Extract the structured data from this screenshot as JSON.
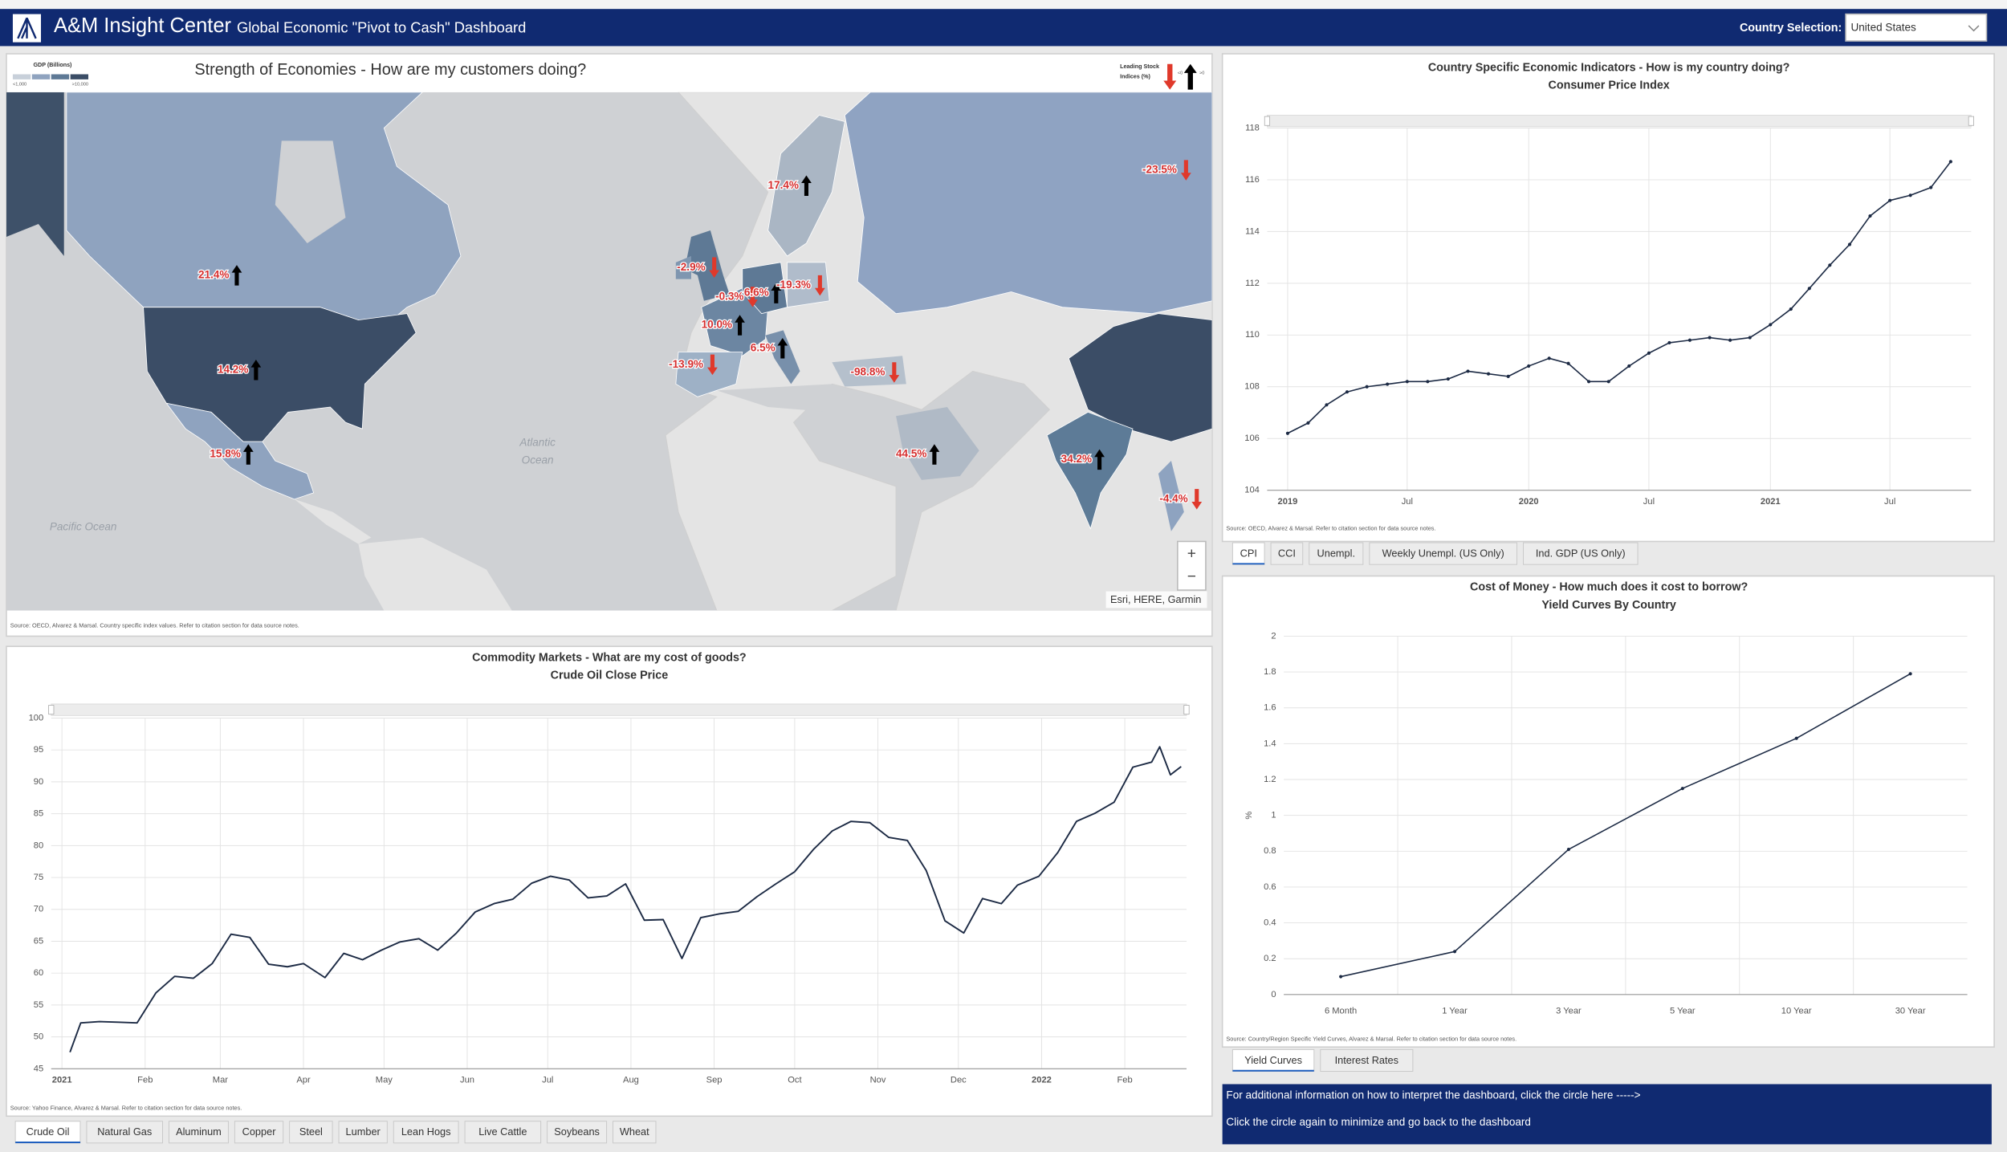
{
  "header": {
    "title": "A&M Insight Center",
    "subtitle": "Global Economic \"Pivot to Cash\" Dashboard",
    "country_label": "Country Selection:",
    "country": "United States"
  },
  "map": {
    "title": "Strength of Economies - How are my customers doing?",
    "gdp_legend": {
      "title": "GDP (Billions)",
      "low": "<1,000",
      "high": ">10,000"
    },
    "stock_legend": {
      "title": [
        "Leading Stock",
        "Indices (%)"
      ],
      "down": "<0",
      "up": ">0"
    },
    "atlantic": [
      "Atlantic",
      "Ocean"
    ],
    "pacific": "Pacific Ocean",
    "attribution": "Esri, HERE, Garmin",
    "zoom": [
      "+",
      "−"
    ],
    "markers": [
      "17.4%",
      "-23.5%",
      "21.4%",
      "14.2%",
      "15.8%",
      "-2.9%",
      "-0.3%",
      "6.6%",
      "-19.3%",
      "10.0%",
      "6.5%",
      "-13.9%",
      "-98.8%",
      "44.5%",
      "34.2%",
      "-4.4%"
    ],
    "source": "Source: OECD, Alvarez & Marsal. Country specific index values. Refer to citation section for data source notes."
  },
  "chart_data": [
    {
      "type": "line",
      "title": "Country Specific Economic Indicators - How is my country doing?",
      "subtitle": "Consumer Price Index",
      "x": [
        "2019-01",
        "2019-02",
        "2019-03",
        "2019-04",
        "2019-05",
        "2019-06",
        "2019-07",
        "2019-08",
        "2019-09",
        "2019-10",
        "2019-11",
        "2019-12",
        "2020-01",
        "2020-02",
        "2020-03",
        "2020-04",
        "2020-05",
        "2020-06",
        "2020-07",
        "2020-08",
        "2020-09",
        "2020-10",
        "2020-11",
        "2020-12",
        "2021-01",
        "2021-02",
        "2021-03",
        "2021-04",
        "2021-05",
        "2021-06",
        "2021-07",
        "2021-08",
        "2021-09",
        "2021-10"
      ],
      "values": [
        106.2,
        106.6,
        107.3,
        107.8,
        108.0,
        108.1,
        108.2,
        108.2,
        108.3,
        108.6,
        108.5,
        108.4,
        108.8,
        109.1,
        108.9,
        108.2,
        108.2,
        108.8,
        109.3,
        109.7,
        109.8,
        109.9,
        109.8,
        109.9,
        110.4,
        111.0,
        111.8,
        112.7,
        113.5,
        114.6,
        115.2,
        115.4,
        115.7,
        116.7
      ],
      "color": "#1c2a44",
      "markers": true,
      "xlim": [
        "2018-12",
        "2021-11"
      ],
      "xticks": [
        {
          "value": "2019-01",
          "label": "2019"
        },
        {
          "value": "2019-07",
          "label": "Jul"
        },
        {
          "value": "2020-01",
          "label": "2020"
        },
        {
          "value": "2020-07",
          "label": "Jul"
        },
        {
          "value": "2021-01",
          "label": "2021"
        },
        {
          "value": "2021-07",
          "label": "Jul"
        }
      ],
      "ylim": [
        104,
        118
      ],
      "yticks": [
        104,
        106,
        108,
        110,
        112,
        114,
        116,
        118
      ],
      "grid": true,
      "source": "Source: OECD, Alvarez & Marsal. Refer to citation section for data source notes.",
      "tabs": [
        "CPI",
        "CCI",
        "Unempl.",
        "Weekly Unempl. (US Only)",
        "Ind. GDP (US Only)"
      ],
      "selected_tab": 0
    },
    {
      "type": "line",
      "title": "Commodity Markets - What are my cost of goods?",
      "subtitle": "Crude Oil Close Price",
      "x": [
        "2021-01-04",
        "2021-01-08",
        "2021-01-15",
        "2021-01-22",
        "2021-01-29",
        "2021-02-05",
        "2021-02-12",
        "2021-02-19",
        "2021-02-26",
        "2021-03-05",
        "2021-03-12",
        "2021-03-19",
        "2021-03-26",
        "2021-04-01",
        "2021-04-09",
        "2021-04-16",
        "2021-04-23",
        "2021-04-30",
        "2021-05-07",
        "2021-05-14",
        "2021-05-21",
        "2021-05-28",
        "2021-06-04",
        "2021-06-11",
        "2021-06-18",
        "2021-06-25",
        "2021-07-02",
        "2021-07-09",
        "2021-07-16",
        "2021-07-23",
        "2021-07-30",
        "2021-08-06",
        "2021-08-13",
        "2021-08-20",
        "2021-08-27",
        "2021-09-03",
        "2021-09-10",
        "2021-09-17",
        "2021-09-24",
        "2021-10-01",
        "2021-10-08",
        "2021-10-15",
        "2021-10-22",
        "2021-10-29",
        "2021-11-05",
        "2021-11-12",
        "2021-11-19",
        "2021-11-26",
        "2021-12-03",
        "2021-12-10",
        "2021-12-17",
        "2021-12-23",
        "2021-12-31",
        "2022-01-07",
        "2022-01-14",
        "2022-01-21",
        "2022-01-28",
        "2022-02-04",
        "2022-02-11",
        "2022-02-14",
        "2022-02-18",
        "2022-02-22"
      ],
      "values": [
        47.6,
        52.2,
        52.4,
        52.3,
        52.2,
        56.9,
        59.5,
        59.2,
        61.5,
        66.1,
        65.6,
        61.4,
        61.0,
        61.5,
        59.3,
        63.1,
        62.1,
        63.6,
        64.9,
        65.4,
        63.6,
        66.3,
        69.6,
        70.9,
        71.6,
        74.1,
        75.2,
        74.6,
        71.8,
        72.1,
        74.0,
        68.3,
        68.4,
        62.3,
        68.7,
        69.3,
        69.7,
        72.0,
        74.0,
        75.9,
        79.4,
        82.3,
        83.8,
        83.6,
        81.3,
        80.8,
        76.1,
        68.2,
        66.3,
        71.7,
        70.9,
        73.8,
        75.2,
        78.9,
        83.8,
        85.1,
        86.8,
        92.3,
        93.1,
        95.5,
        91.1,
        92.4
      ],
      "color": "#1c2a44",
      "markers": false,
      "xlim": [
        "2020-12-28",
        "2022-02-24"
      ],
      "xticks": [
        {
          "value": "2021-01-01",
          "label": "2021"
        },
        {
          "value": "2021-02-01",
          "label": "Feb"
        },
        {
          "value": "2021-03-01",
          "label": "Mar"
        },
        {
          "value": "2021-04-01",
          "label": "Apr"
        },
        {
          "value": "2021-05-01",
          "label": "May"
        },
        {
          "value": "2021-06-01",
          "label": "Jun"
        },
        {
          "value": "2021-07-01",
          "label": "Jul"
        },
        {
          "value": "2021-08-01",
          "label": "Aug"
        },
        {
          "value": "2021-09-01",
          "label": "Sep"
        },
        {
          "value": "2021-10-01",
          "label": "Oct"
        },
        {
          "value": "2021-11-01",
          "label": "Nov"
        },
        {
          "value": "2021-12-01",
          "label": "Dec"
        },
        {
          "value": "2022-01-01",
          "label": "2022"
        },
        {
          "value": "2022-02-01",
          "label": "Feb"
        }
      ],
      "ylim": [
        45,
        100
      ],
      "yticks": [
        45,
        50,
        55,
        60,
        65,
        70,
        75,
        80,
        85,
        90,
        95,
        100
      ],
      "grid": true,
      "source": "Source: Yahoo Finance, Alvarez & Marsal. Refer to citation section for data source notes.",
      "tabs": [
        "Crude Oil",
        "Natural Gas",
        "Aluminum",
        "Copper",
        "Steel",
        "Lumber",
        "Lean Hogs",
        "Live Cattle",
        "Soybeans",
        "Wheat"
      ],
      "selected_tab": 0
    },
    {
      "type": "line",
      "title": "Cost of Money - How much does it cost to borrow?",
      "subtitle": "Yield Curves By Country",
      "categories": [
        "6 Month",
        "1 Year",
        "3 Year",
        "5 Year",
        "10 Year",
        "30 Year"
      ],
      "values": [
        0.1,
        0.24,
        0.81,
        1.15,
        1.43,
        1.79
      ],
      "color": "#1c2a44",
      "markers": true,
      "ylabel": "%",
      "ylim": [
        0,
        2
      ],
      "yticks": [
        0,
        0.2,
        0.4,
        0.6,
        0.8,
        1,
        1.2,
        1.4,
        1.6,
        1.8,
        2
      ],
      "grid": true,
      "source": "Source: Country/Region Specific Yield Curves, Alvarez & Marsal. Refer to citation section for data source notes.",
      "tabs": [
        "Yield Curves",
        "Interest Rates"
      ],
      "selected_tab": 0
    }
  ],
  "info": {
    "lines": [
      "For additional information on how to interpret the dashboard, click the circle here ----->",
      "Click the circle again to minimize and go back to the dashboard"
    ]
  }
}
